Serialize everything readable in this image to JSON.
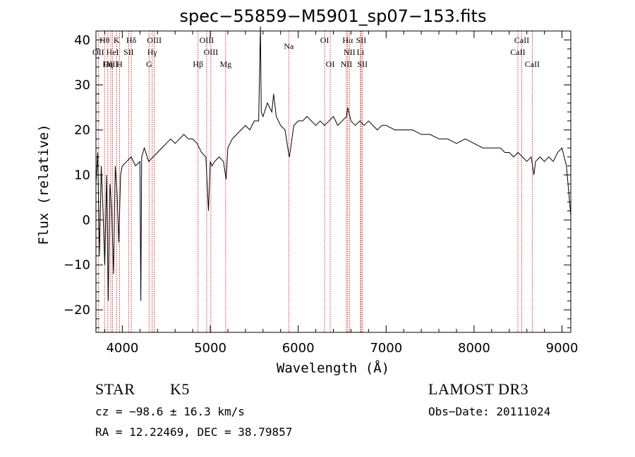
{
  "chart_data": {
    "type": "line",
    "title": "spec−55859−M5901_sp07−153.fits",
    "xlabel": "Wavelength (Å)",
    "ylabel": "Flux (relative)",
    "xlim": [
      3700,
      9100
    ],
    "ylim": [
      -25,
      42
    ],
    "x_ticks": [
      4000,
      5000,
      6000,
      7000,
      8000,
      9000
    ],
    "x_tick_labels": [
      "4000",
      "5000",
      "6000",
      "7000",
      "8000",
      "9000"
    ],
    "y_ticks": [
      -20,
      -10,
      0,
      10,
      20,
      30,
      40
    ],
    "y_tick_labels": [
      "−20",
      "−10",
      "0",
      "10",
      "20",
      "30",
      "40"
    ],
    "series": [
      {
        "name": "flux",
        "x": [
          3700,
          3720,
          3740,
          3760,
          3780,
          3800,
          3820,
          3840,
          3860,
          3880,
          3900,
          3920,
          3940,
          3960,
          3980,
          4000,
          4050,
          4100,
          4150,
          4200,
          4210,
          4220,
          4250,
          4300,
          4350,
          4400,
          4450,
          4500,
          4550,
          4600,
          4650,
          4700,
          4750,
          4800,
          4850,
          4900,
          4950,
          4980,
          5000,
          5020,
          5050,
          5100,
          5150,
          5180,
          5200,
          5250,
          5300,
          5350,
          5400,
          5450,
          5500,
          5550,
          5570,
          5580,
          5600,
          5650,
          5700,
          5720,
          5750,
          5800,
          5850,
          5890,
          5900,
          5950,
          6000,
          6050,
          6100,
          6150,
          6200,
          6250,
          6300,
          6350,
          6400,
          6450,
          6500,
          6550,
          6563,
          6600,
          6650,
          6700,
          6750,
          6800,
          6850,
          6900,
          6950,
          7000,
          7100,
          7200,
          7300,
          7400,
          7500,
          7600,
          7700,
          7800,
          7900,
          8000,
          8100,
          8200,
          8300,
          8350,
          8400,
          8450,
          8500,
          8550,
          8600,
          8650,
          8680,
          8700,
          8750,
          8800,
          8850,
          8900,
          8950,
          9000,
          9050,
          9100
        ],
        "y": [
          8,
          15,
          -8,
          12,
          2,
          -10,
          10,
          -18,
          8,
          2,
          -12,
          12,
          6,
          -5,
          10,
          12,
          13,
          14,
          12,
          13,
          -18,
          14,
          16,
          13,
          14,
          15,
          16,
          17,
          18,
          17,
          18,
          19,
          18,
          18,
          17,
          15,
          14,
          2,
          13,
          12,
          13,
          14,
          13,
          9,
          16,
          18,
          19,
          20,
          21,
          20,
          22,
          22,
          43,
          24,
          23,
          26,
          24,
          28,
          23,
          21,
          20,
          15,
          14,
          21,
          22,
          22,
          23,
          22,
          21,
          22,
          21,
          22,
          23,
          21,
          22,
          23,
          25,
          22,
          21,
          22,
          21,
          22,
          21,
          20,
          21,
          21,
          20,
          20,
          20,
          19,
          19,
          18,
          18,
          17,
          18,
          17,
          16,
          16,
          16,
          15,
          15,
          14,
          15,
          14,
          13,
          14,
          10,
          13,
          14,
          13,
          14,
          13,
          15,
          16,
          12,
          1
        ]
      }
    ],
    "line_markers": [
      {
        "label": "Hθ",
        "x": 3798,
        "row": 1
      },
      {
        "label": "K",
        "x": 3934,
        "row": 1
      },
      {
        "label": "Hδ",
        "x": 4102,
        "row": 1
      },
      {
        "label": "OIII",
        "x": 4363,
        "row": 1
      },
      {
        "label": "OIII",
        "x": 4959,
        "row": 1
      },
      {
        "label": "OI",
        "x": 6300,
        "row": 1
      },
      {
        "label": "Hα",
        "x": 6563,
        "row": 1
      },
      {
        "label": "SII",
        "x": 6716,
        "row": 1
      },
      {
        "label": "CaII",
        "x": 8542,
        "row": 1
      },
      {
        "label": "OII",
        "x": 3727,
        "row": 2
      },
      {
        "label": "HeI",
        "x": 3889,
        "row": 2
      },
      {
        "label": "SII",
        "x": 4072,
        "row": 2
      },
      {
        "label": "Hγ",
        "x": 4340,
        "row": 2
      },
      {
        "label": "OIII",
        "x": 5007,
        "row": 2
      },
      {
        "label": "NII",
        "x": 6583,
        "row": 2
      },
      {
        "label": "Li",
        "x": 6708,
        "row": 2
      },
      {
        "label": "CaII",
        "x": 8498,
        "row": 2
      },
      {
        "label": "OIII",
        "x": 3869,
        "row": 3
      },
      {
        "label": "Hη",
        "x": 3835,
        "row": 3
      },
      {
        "label": "H",
        "x": 3968,
        "row": 3
      },
      {
        "label": "G",
        "x": 4304,
        "row": 3
      },
      {
        "label": "Hβ",
        "x": 4861,
        "row": 3
      },
      {
        "label": "Mg",
        "x": 5175,
        "row": 3
      },
      {
        "label": "Na",
        "x": 5893,
        "row": 1.5
      },
      {
        "label": "OI",
        "x": 6364,
        "row": 3
      },
      {
        "label": "NII",
        "x": 6548,
        "row": 3
      },
      {
        "label": "SII",
        "x": 6731,
        "row": 3
      },
      {
        "label": "CaII",
        "x": 8662,
        "row": 3
      }
    ],
    "marker_color": "#cc0000"
  },
  "info": {
    "class": "STAR",
    "subclass": "K5",
    "survey": "LAMOST DR3",
    "cz": "cz = −98.6 ± 16.3 km/s",
    "obs_date": "Obs−Date: 20111024",
    "coords": "RA =  12.22469, DEC =  38.79857"
  }
}
